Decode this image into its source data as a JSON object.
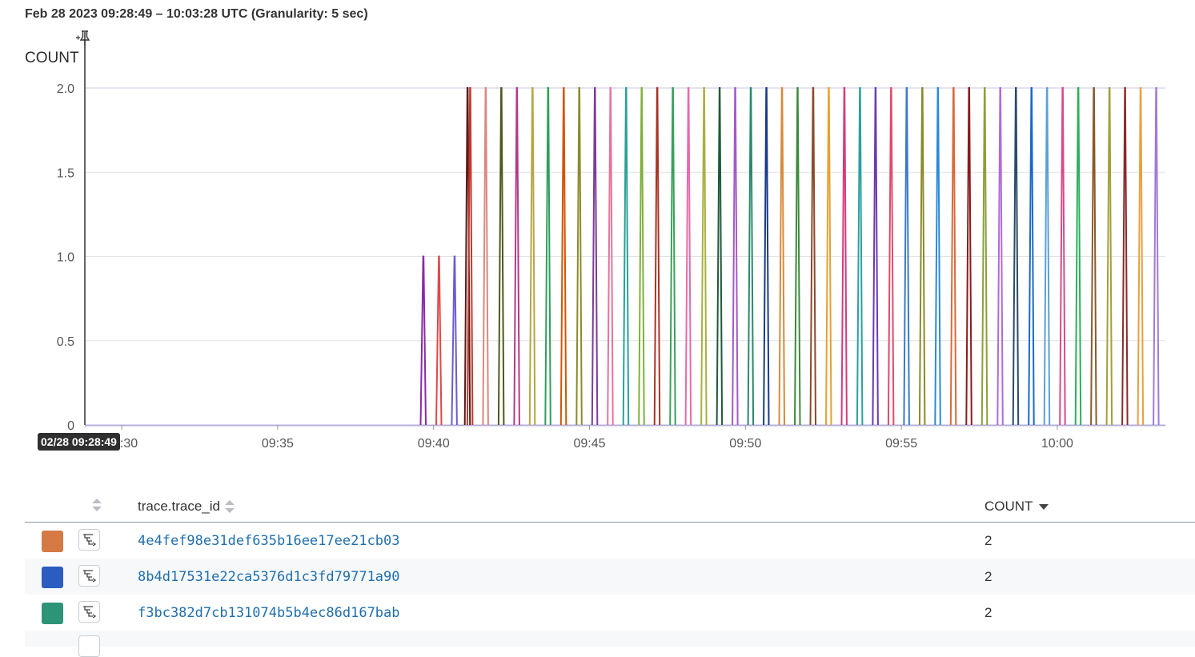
{
  "header": {
    "time_range": "Feb 28 2023 09:28:49 – 10:03:28 UTC (Granularity: 5 sec)"
  },
  "cursor_badge": "02/28 09:28:49",
  "chart_data": {
    "type": "line",
    "ylabel": "COUNT",
    "xlabel": "",
    "x_start": "09:28:49",
    "x_end": "10:03:28",
    "ylim": [
      0,
      2
    ],
    "yticks": [
      "0",
      "0.5",
      "1.0",
      "1.5",
      "2.0"
    ],
    "yticks_values": [
      0,
      0.5,
      1,
      1.5,
      2
    ],
    "xticks": [
      "09:30",
      "09:35",
      "09:40",
      "09:45",
      "09:50",
      "09:55",
      "10:00"
    ],
    "grid": true,
    "series": [
      {
        "t": "09:39:40",
        "v": 1,
        "color": "#8a2aa8"
      },
      {
        "t": "09:40:10",
        "v": 1,
        "color": "#e04848"
      },
      {
        "t": "09:40:40",
        "v": 1,
        "color": "#6a5bd6"
      },
      {
        "t": "09:41:05",
        "v": 2,
        "color": "#5a1a1a"
      },
      {
        "t": "09:41:10",
        "v": 2,
        "color": "#c0392b"
      },
      {
        "t": "09:41:40",
        "v": 2,
        "color": "#d98880"
      },
      {
        "t": "09:42:10",
        "v": 2,
        "color": "#4a5a1a"
      },
      {
        "t": "09:42:40",
        "v": 2,
        "color": "#b03a8a"
      },
      {
        "t": "09:43:10",
        "v": 2,
        "color": "#b5a642"
      },
      {
        "t": "09:43:40",
        "v": 2,
        "color": "#2ca05a"
      },
      {
        "t": "09:44:10",
        "v": 2,
        "color": "#d35400"
      },
      {
        "t": "09:44:40",
        "v": 2,
        "color": "#8b8b2a"
      },
      {
        "t": "09:45:10",
        "v": 2,
        "color": "#7d3c98"
      },
      {
        "t": "09:45:40",
        "v": 2,
        "color": "#e8739a"
      },
      {
        "t": "09:46:10",
        "v": 2,
        "color": "#2aa198"
      },
      {
        "t": "09:46:40",
        "v": 2,
        "color": "#7fb03a"
      },
      {
        "t": "09:47:10",
        "v": 2,
        "color": "#a93226"
      },
      {
        "t": "09:47:40",
        "v": 2,
        "color": "#3aa05a"
      },
      {
        "t": "09:48:10",
        "v": 2,
        "color": "#e86aa8"
      },
      {
        "t": "09:48:40",
        "v": 2,
        "color": "#a8b040"
      },
      {
        "t": "09:49:10",
        "v": 2,
        "color": "#1e5a3a"
      },
      {
        "t": "09:49:40",
        "v": 2,
        "color": "#a35ac8"
      },
      {
        "t": "09:50:10",
        "v": 2,
        "color": "#2a8a6a"
      },
      {
        "t": "09:50:40",
        "v": 2,
        "color": "#1a3a8a"
      },
      {
        "t": "09:51:10",
        "v": 2,
        "color": "#d88a3a"
      },
      {
        "t": "09:51:40",
        "v": 2,
        "color": "#3a8a3a"
      },
      {
        "t": "09:52:10",
        "v": 2,
        "color": "#8a4a2a"
      },
      {
        "t": "09:52:40",
        "v": 2,
        "color": "#e8a030"
      },
      {
        "t": "09:53:10",
        "v": 2,
        "color": "#d83a7a"
      },
      {
        "t": "09:53:40",
        "v": 2,
        "color": "#2aa0a0"
      },
      {
        "t": "09:54:10",
        "v": 2,
        "color": "#6a3ab0"
      },
      {
        "t": "09:54:40",
        "v": 2,
        "color": "#e04a6a"
      },
      {
        "t": "09:55:10",
        "v": 2,
        "color": "#3a7ac8"
      },
      {
        "t": "09:55:40",
        "v": 2,
        "color": "#8a8a2a"
      },
      {
        "t": "09:56:10",
        "v": 2,
        "color": "#2a8ad8"
      },
      {
        "t": "09:56:40",
        "v": 2,
        "color": "#d86a3a"
      },
      {
        "t": "09:57:10",
        "v": 2,
        "color": "#8a1a1a"
      },
      {
        "t": "09:57:40",
        "v": 2,
        "color": "#8aa03a"
      },
      {
        "t": "09:58:10",
        "v": 2,
        "color": "#b06ad8"
      },
      {
        "t": "09:58:40",
        "v": 2,
        "color": "#2a4a6a"
      },
      {
        "t": "09:59:10",
        "v": 2,
        "color": "#1a6ac8"
      },
      {
        "t": "09:59:40",
        "v": 2,
        "color": "#5aa0d8"
      },
      {
        "t": "10:00:10",
        "v": 2,
        "color": "#d84a8a"
      },
      {
        "t": "10:00:40",
        "v": 2,
        "color": "#2ab05a"
      },
      {
        "t": "10:01:10",
        "v": 2,
        "color": "#8a5a2a"
      },
      {
        "t": "10:01:40",
        "v": 2,
        "color": "#a0a03a"
      },
      {
        "t": "10:02:10",
        "v": 2,
        "color": "#8a2a2a"
      },
      {
        "t": "10:02:40",
        "v": 2,
        "color": "#e8a040"
      },
      {
        "t": "10:03:10",
        "v": 2,
        "color": "#a07ad8"
      }
    ]
  },
  "table": {
    "columns": {
      "id": "trace.trace_id",
      "count": "COUNT"
    },
    "rows": [
      {
        "color": "#d57a44",
        "trace_id": "4e4fef98e31def635b16ee17ee21cb03",
        "count": "2"
      },
      {
        "color": "#2a5dbf",
        "trace_id": "8b4d17531e22ca5376d1c3fd79771a90",
        "count": "2"
      },
      {
        "color": "#2e9478",
        "trace_id": "f3bc382d7cb131074b5b4ec86d167bab",
        "count": "2"
      }
    ]
  },
  "icons": {
    "pin": "pin-icon",
    "trace": "trace-waterfall-icon",
    "sort": "sort-icon",
    "sort_desc": "sort-desc-icon"
  }
}
